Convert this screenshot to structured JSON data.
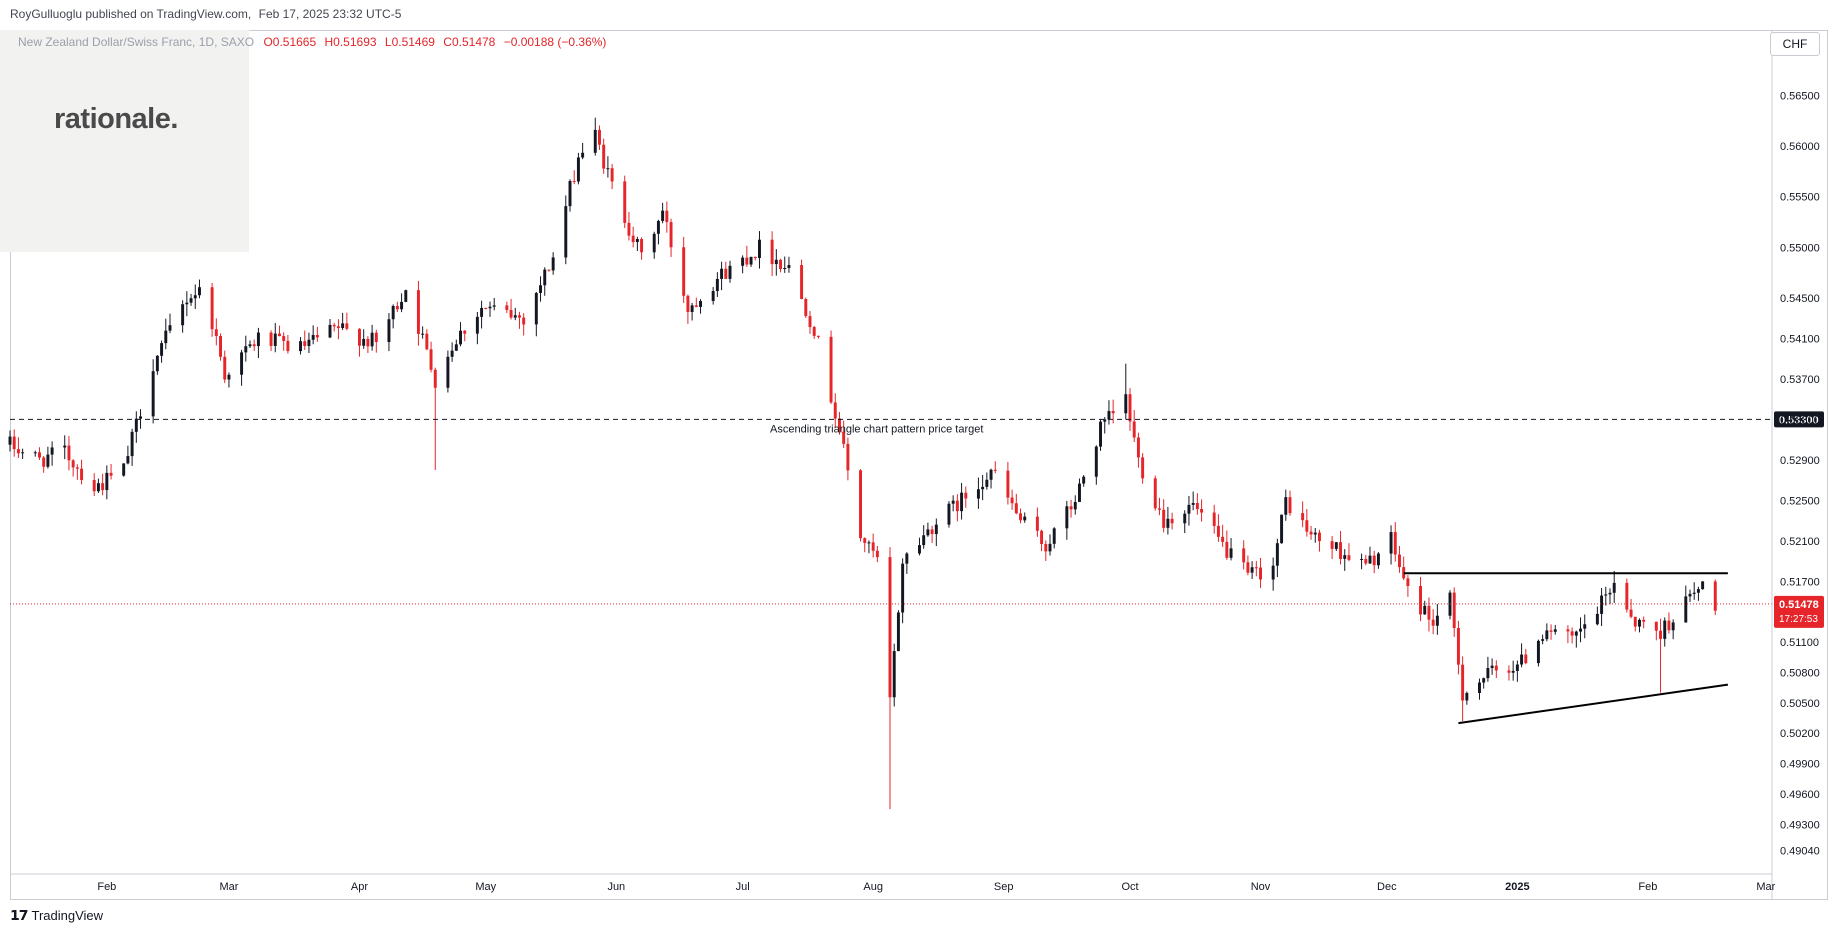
{
  "header": {
    "publisher": "RoyGulluoglu published on TradingView.com,",
    "date": "Feb 17, 2025 23:32 UTC-5"
  },
  "legend": {
    "symbol": "New Zealand Dollar/Swiss Franc, 1D, SAXO",
    "open": "O0.51665",
    "high": "H0.51693",
    "low": "L0.51469",
    "close": "C0.51478",
    "change": "−0.00188 (−0.36%)"
  },
  "brand": {
    "logo": "rationale."
  },
  "toolbar": {
    "currency": "CHF"
  },
  "footer": {
    "logo_text": "TradingView"
  },
  "colors": {
    "up": "#131722",
    "down": "#e5252a",
    "grid": "#e1e3e8",
    "price_tag": "#e5252a",
    "target_tag": "#131722"
  },
  "chart_data": {
    "type": "candlestick",
    "symbol": "NZDCHF",
    "timeframe": "1D",
    "y_axis_ticks": [
      "0.56500",
      "0.56000",
      "0.55500",
      "0.55000",
      "0.54500",
      "0.54100",
      "0.53700",
      "0.53300",
      "0.52900",
      "0.52500",
      "0.52100",
      "0.51700",
      "0.51100",
      "0.50800",
      "0.50500",
      "0.50200",
      "0.49900",
      "0.49600",
      "0.49300",
      "0.49040"
    ],
    "y_range": [
      0.4875,
      0.5685
    ],
    "x_axis_labels": [
      "Feb",
      "Mar",
      "Apr",
      "May",
      "Jun",
      "Jul",
      "Aug",
      "Sep",
      "Oct",
      "Nov",
      "Dec",
      "2025",
      "Feb",
      "Mar"
    ],
    "x_range": [
      "2024-01-09",
      "2025-03-02"
    ],
    "current_price": {
      "value": "0.51478",
      "countdown": "17:27:53"
    },
    "target_level": {
      "value": "0.53300",
      "label": "Ascending triangle chart pattern price target"
    },
    "pattern": {
      "resistance": {
        "from": [
          "2024-12-05",
          0.5178
        ],
        "to": [
          "2025-02-20",
          0.5178
        ]
      },
      "support": {
        "from": [
          "2024-12-18",
          0.503
        ],
        "to": [
          "2025-02-20",
          0.5068
        ]
      }
    },
    "anchors": [
      [
        "2024-01-09",
        0.5305
      ],
      [
        "2024-01-16",
        0.529
      ],
      [
        "2024-01-22",
        0.5298
      ],
      [
        "2024-01-29",
        0.5262
      ],
      [
        "2024-02-05",
        0.528
      ],
      [
        "2024-02-08",
        0.5325
      ],
      [
        "2024-02-12",
        0.5385
      ],
      [
        "2024-02-20",
        0.545
      ],
      [
        "2024-02-24",
        0.546
      ],
      [
        "2024-02-29",
        0.5375
      ],
      [
        "2024-03-08",
        0.541
      ],
      [
        "2024-03-18",
        0.54
      ],
      [
        "2024-03-27",
        0.542
      ],
      [
        "2024-04-05",
        0.5405
      ],
      [
        "2024-04-12",
        0.546
      ],
      [
        "2024-04-19",
        0.537
      ],
      [
        "2024-04-24",
        0.541
      ],
      [
        "2024-04-30",
        0.544
      ],
      [
        "2024-05-10",
        0.543
      ],
      [
        "2024-05-17",
        0.549
      ],
      [
        "2024-05-23",
        0.559
      ],
      [
        "2024-05-27",
        0.561
      ],
      [
        "2024-05-31",
        0.556
      ],
      [
        "2024-06-07",
        0.549
      ],
      [
        "2024-06-12",
        0.5535
      ],
      [
        "2024-06-18",
        0.544
      ],
      [
        "2024-06-25",
        0.547
      ],
      [
        "2024-07-05",
        0.55
      ],
      [
        "2024-07-12",
        0.548
      ],
      [
        "2024-07-18",
        0.542
      ],
      [
        "2024-07-24",
        0.532
      ],
      [
        "2024-07-29",
        0.5215
      ],
      [
        "2024-08-02",
        0.519
      ],
      [
        "2024-08-05",
        0.505
      ],
      [
        "2024-08-08",
        0.519
      ],
      [
        "2024-08-15",
        0.5225
      ],
      [
        "2024-08-22",
        0.525
      ],
      [
        "2024-08-29",
        0.528
      ],
      [
        "2024-09-05",
        0.523
      ],
      [
        "2024-09-11",
        0.5205
      ],
      [
        "2024-09-18",
        0.525
      ],
      [
        "2024-09-24",
        0.532
      ],
      [
        "2024-09-30",
        0.535
      ],
      [
        "2024-10-03",
        0.529
      ],
      [
        "2024-10-09",
        0.523
      ],
      [
        "2024-10-16",
        0.5245
      ],
      [
        "2024-10-22",
        0.521
      ],
      [
        "2024-10-29",
        0.5175
      ],
      [
        "2024-11-04",
        0.5185
      ],
      [
        "2024-11-07",
        0.525
      ],
      [
        "2024-11-13",
        0.5215
      ],
      [
        "2024-11-20",
        0.52
      ],
      [
        "2024-11-26",
        0.5185
      ],
      [
        "2024-12-02",
        0.521
      ],
      [
        "2024-12-06",
        0.516
      ],
      [
        "2024-12-12",
        0.513
      ],
      [
        "2024-12-16",
        0.515
      ],
      [
        "2024-12-19",
        0.506
      ],
      [
        "2024-12-26",
        0.508
      ],
      [
        "2025-01-02",
        0.509
      ],
      [
        "2025-01-08",
        0.5125
      ],
      [
        "2025-01-14",
        0.511
      ],
      [
        "2025-01-20",
        0.514
      ],
      [
        "2025-01-24",
        0.517
      ],
      [
        "2025-01-29",
        0.513
      ],
      [
        "2025-02-04",
        0.512
      ],
      [
        "2025-02-10",
        0.515
      ],
      [
        "2025-02-14",
        0.5165
      ],
      [
        "2025-02-17",
        0.5148
      ]
    ]
  }
}
